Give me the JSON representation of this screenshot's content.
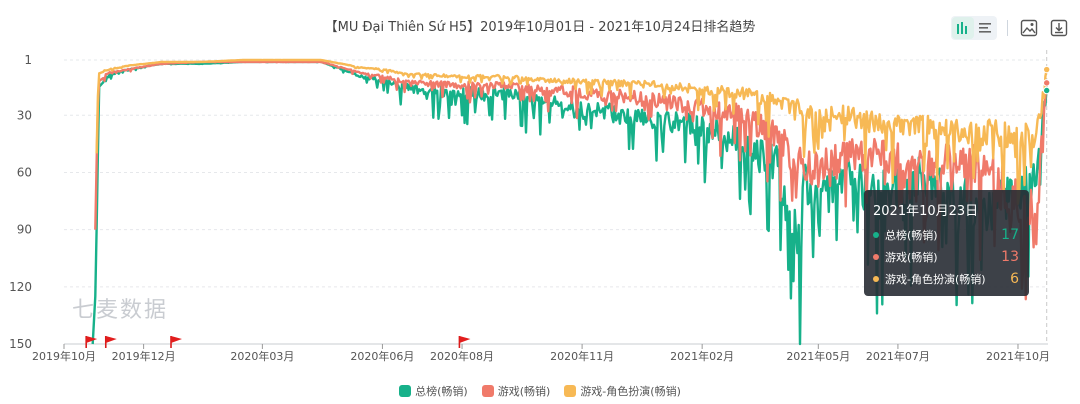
{
  "title": "【MU Đại Thiên Sứ H5】2019年10月01日 - 2021年10月24日排名趋势",
  "watermark": "七麦数据",
  "toolbar": {
    "icons": [
      "bar-chart-icon",
      "list-icon",
      "image-save-icon",
      "download-icon"
    ]
  },
  "tooltip": {
    "date": "2021年10月23日",
    "rows": [
      {
        "name": "总榜(畅销)",
        "value": "17",
        "color": "#17b18a"
      },
      {
        "name": "游戏(畅销)",
        "value": "13",
        "color": "#f07a6a"
      },
      {
        "name": "游戏-角色扮演(畅销)",
        "value": "6",
        "color": "#f7b955"
      }
    ]
  },
  "colors": {
    "total": "#17b18a",
    "game": "#f07a6a",
    "rpg": "#f7b955"
  },
  "chart_data": {
    "type": "line",
    "title": "【MU Đại Thiên Sứ H5】2019年10月01日 - 2021年10月24日排名趋势",
    "y_inverted": true,
    "ylim": [
      1,
      150
    ],
    "y_ticks": [
      1,
      30,
      60,
      90,
      120,
      150
    ],
    "x_range": [
      "2019-10-01",
      "2021-10-24"
    ],
    "x_ticks": [
      "2019年10月",
      "2019年12月",
      "2020年03月",
      "2020年06月",
      "2020年08月",
      "2020年11月",
      "2021年02月",
      "2021年05月",
      "2021年07月",
      "2021年10月"
    ],
    "x_tick_dates": [
      "2019-10-01",
      "2019-12-01",
      "2020-03-01",
      "2020-06-01",
      "2020-08-01",
      "2020-11-01",
      "2021-02-01",
      "2021-05-01",
      "2021-07-01",
      "2021-10-01"
    ],
    "flag_dates": [
      "2019-10-18",
      "2019-11-02",
      "2019-12-22",
      "2020-07-30"
    ],
    "grid": true,
    "legend": "bottom",
    "series": [
      {
        "name": "总榜(畅销)",
        "color": "#17b18a",
        "points": [
          [
            "2019-10-23",
            150
          ],
          [
            "2019-10-25",
            125
          ],
          [
            "2019-10-26",
            90
          ],
          [
            "2019-10-27",
            50
          ],
          [
            "2019-10-28",
            15
          ],
          [
            "2019-11-05",
            9
          ],
          [
            "2019-11-20",
            6
          ],
          [
            "2019-12-15",
            3
          ],
          [
            "2020-01-15",
            3
          ],
          [
            "2020-02-15",
            2
          ],
          [
            "2020-03-15",
            2
          ],
          [
            "2020-04-15",
            2
          ],
          [
            "2020-05-01",
            6
          ],
          [
            "2020-05-15",
            10
          ],
          [
            "2020-06-01",
            12
          ],
          [
            "2020-06-15",
            16
          ],
          [
            "2020-07-01",
            18
          ],
          [
            "2020-08-01",
            20
          ],
          [
            "2020-09-01",
            20
          ],
          [
            "2020-10-01",
            25
          ],
          [
            "2020-11-01",
            30
          ],
          [
            "2020-12-01",
            32
          ],
          [
            "2021-01-01",
            35
          ],
          [
            "2021-02-01",
            40
          ],
          [
            "2021-03-01",
            45
          ],
          [
            "2021-03-15",
            55
          ],
          [
            "2021-04-01",
            62
          ],
          [
            "2021-04-15",
            110
          ],
          [
            "2021-04-20",
            70
          ],
          [
            "2021-05-01",
            90
          ],
          [
            "2021-05-15",
            68
          ],
          [
            "2021-06-01",
            72
          ],
          [
            "2021-06-15",
            80
          ],
          [
            "2021-07-01",
            75
          ],
          [
            "2021-07-20",
            68
          ],
          [
            "2021-08-10",
            80
          ],
          [
            "2021-09-10",
            85
          ],
          [
            "2021-10-15",
            70
          ],
          [
            "2021-10-23",
            17
          ]
        ]
      },
      {
        "name": "游戏(畅销)",
        "color": "#f07a6a",
        "points": [
          [
            "2019-10-25",
            90
          ],
          [
            "2019-10-26",
            55
          ],
          [
            "2019-10-27",
            25
          ],
          [
            "2019-10-28",
            12
          ],
          [
            "2019-11-05",
            8
          ],
          [
            "2019-11-20",
            6
          ],
          [
            "2019-12-15",
            3
          ],
          [
            "2020-01-15",
            2
          ],
          [
            "2020-02-15",
            2
          ],
          [
            "2020-03-15",
            2
          ],
          [
            "2020-04-15",
            2
          ],
          [
            "2020-05-01",
            5
          ],
          [
            "2020-05-15",
            8
          ],
          [
            "2020-06-01",
            10
          ],
          [
            "2020-06-15",
            13
          ],
          [
            "2020-07-01",
            14
          ],
          [
            "2020-08-01",
            15
          ],
          [
            "2020-09-01",
            15
          ],
          [
            "2020-10-01",
            18
          ],
          [
            "2020-11-01",
            20
          ],
          [
            "2020-12-01",
            22
          ],
          [
            "2021-01-01",
            25
          ],
          [
            "2021-02-01",
            28
          ],
          [
            "2021-03-01",
            32
          ],
          [
            "2021-04-01",
            45
          ],
          [
            "2021-04-20",
            65
          ],
          [
            "2021-05-01",
            62
          ],
          [
            "2021-06-01",
            55
          ],
          [
            "2021-07-01",
            58
          ],
          [
            "2021-08-01",
            60
          ],
          [
            "2021-09-01",
            60
          ],
          [
            "2021-10-15",
            95
          ],
          [
            "2021-10-23",
            13
          ]
        ]
      },
      {
        "name": "游戏-角色扮演(畅销)",
        "color": "#f7b955",
        "points": [
          [
            "2019-10-26",
            50
          ],
          [
            "2019-10-27",
            20
          ],
          [
            "2019-10-28",
            8
          ],
          [
            "2019-11-05",
            6
          ],
          [
            "2019-11-20",
            4
          ],
          [
            "2019-12-15",
            2
          ],
          [
            "2020-01-15",
            2
          ],
          [
            "2020-02-15",
            1
          ],
          [
            "2020-03-15",
            1
          ],
          [
            "2020-04-15",
            1
          ],
          [
            "2020-05-01",
            3
          ],
          [
            "2020-05-15",
            5
          ],
          [
            "2020-06-01",
            6
          ],
          [
            "2020-06-15",
            8
          ],
          [
            "2020-07-01",
            9
          ],
          [
            "2020-08-01",
            10
          ],
          [
            "2020-09-01",
            10
          ],
          [
            "2020-10-01",
            12
          ],
          [
            "2020-11-01",
            13
          ],
          [
            "2020-12-01",
            14
          ],
          [
            "2021-01-01",
            15
          ],
          [
            "2021-02-01",
            18
          ],
          [
            "2021-03-01",
            20
          ],
          [
            "2021-04-01",
            25
          ],
          [
            "2021-04-20",
            30
          ],
          [
            "2021-05-01",
            30
          ],
          [
            "2021-06-01",
            35
          ],
          [
            "2021-07-01",
            38
          ],
          [
            "2021-08-01",
            40
          ],
          [
            "2021-09-01",
            42
          ],
          [
            "2021-10-15",
            45
          ],
          [
            "2021-10-23",
            6
          ]
        ]
      }
    ]
  }
}
